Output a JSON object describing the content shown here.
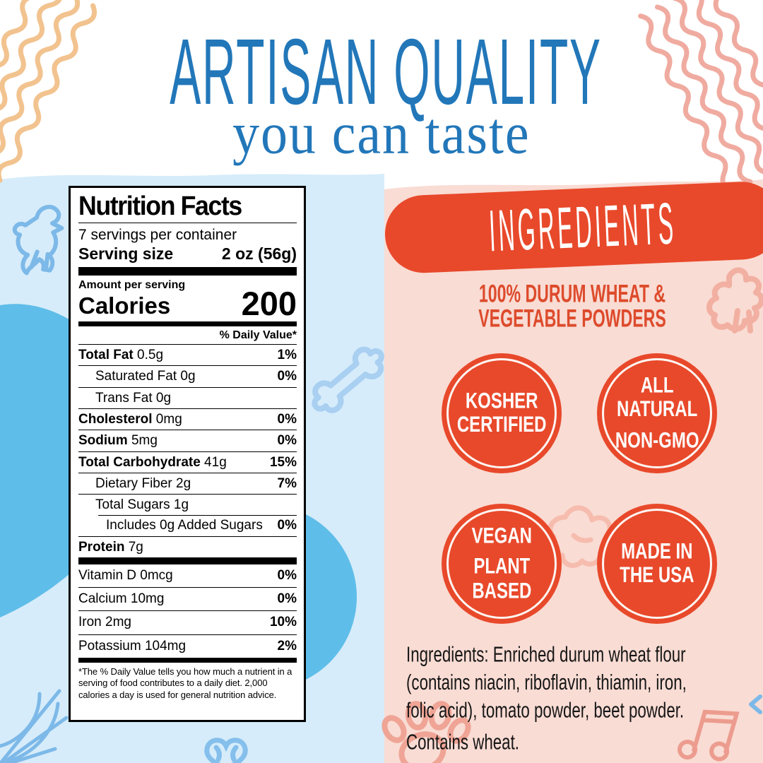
{
  "header": {
    "title": "ARTISAN QUALITY",
    "subtitle": "you can taste"
  },
  "nutrition": {
    "title": "Nutrition Facts",
    "servings_per_container": "7 servings per container",
    "serving_size_label": "Serving size",
    "serving_size_value": "2 oz (56g)",
    "amount_per_serving": "Amount per serving",
    "calories_label": "Calories",
    "calories_value": "200",
    "daily_value_header": "% Daily Value*",
    "rows": [
      {
        "name": "Total Fat",
        "amount": "0.5g",
        "dv": "1%",
        "bold": true,
        "indent": 0
      },
      {
        "name": "Saturated Fat",
        "amount": "0g",
        "dv": "0%",
        "bold": false,
        "indent": 1
      },
      {
        "name": "Trans Fat",
        "amount": "0g",
        "dv": "",
        "bold": false,
        "indent": 1
      },
      {
        "name": "Cholesterol",
        "amount": "0mg",
        "dv": "0%",
        "bold": true,
        "indent": 0
      },
      {
        "name": "Sodium",
        "amount": "5mg",
        "dv": "0%",
        "bold": true,
        "indent": 0
      },
      {
        "name": "Total Carbohydrate",
        "amount": "41g",
        "dv": "15%",
        "bold": true,
        "indent": 0
      },
      {
        "name": "Dietary Fiber",
        "amount": "2g",
        "dv": "7%",
        "bold": false,
        "indent": 1
      },
      {
        "name": "Total Sugars",
        "amount": "1g",
        "dv": "",
        "bold": false,
        "indent": 1
      },
      {
        "name": "Includes 0g Added Sugars",
        "amount": "",
        "dv": "0%",
        "bold": false,
        "indent": 2,
        "partial_rule": true
      },
      {
        "name": "Protein",
        "amount": "7g",
        "dv": "",
        "bold": true,
        "indent": 0
      }
    ],
    "vitamin_rows": [
      {
        "name": "Vitamin D",
        "amount": "0mcg",
        "dv": "0%"
      },
      {
        "name": "Calcium",
        "amount": "10mg",
        "dv": "0%"
      },
      {
        "name": "Iron",
        "amount": "2mg",
        "dv": "10%"
      },
      {
        "name": "Potassium",
        "amount": "104mg",
        "dv": "2%"
      }
    ],
    "footnote": "*The % Daily Value tells you how much a nutrient in a serving of food contributes to a daily diet. 2,000 calories a day is used for general nutrition advice."
  },
  "ingredients_panel": {
    "title": "INGREDIENTS",
    "subtitle_lines": [
      "100% DURUM WHEAT &",
      "VEGETABLE POWDERS"
    ],
    "badges": [
      {
        "groups": [
          [
            "KOSHER",
            "CERTIFIED"
          ]
        ]
      },
      {
        "groups": [
          [
            "ALL",
            "NATURAL"
          ],
          [
            "NON-GMO"
          ]
        ]
      },
      {
        "groups": [
          [
            "VEGAN"
          ],
          [
            "PLANT",
            "BASED"
          ]
        ]
      },
      {
        "groups": [
          [
            "MADE IN",
            "THE USA"
          ]
        ]
      }
    ],
    "ingredients_lines": [
      "Ingredients: Enriched durum wheat flour",
      "(contains niacin, riboflavin, thiamin, iron,",
      "folic acid), tomato powder, beet powder."
    ],
    "allergen_text": "Contains wheat."
  },
  "colors": {
    "header_blue": "#2277b9",
    "accent_red": "#e8492b",
    "subtitle_red": "#dd4b2c",
    "panel_blue_light": "#d6ecfa",
    "panel_blue_accent": "#5fbde9",
    "panel_pink": "#f9dcd4",
    "doodle_blue": "#7db9e8",
    "doodle_pink": "#f2b0a2",
    "waves_orange": "#f2c38f",
    "waves_pink": "#f0aba0"
  },
  "decorations": [
    "top-left-waves",
    "top-right-waves",
    "dinosaur-doodle",
    "bone-doodle",
    "spider-web-doodle",
    "heart-pretzel-doodle",
    "rooster-doodle",
    "animal-squiggle-doodle",
    "paw-print-doodle",
    "music-notes-doodle",
    "arrow-doodle"
  ]
}
